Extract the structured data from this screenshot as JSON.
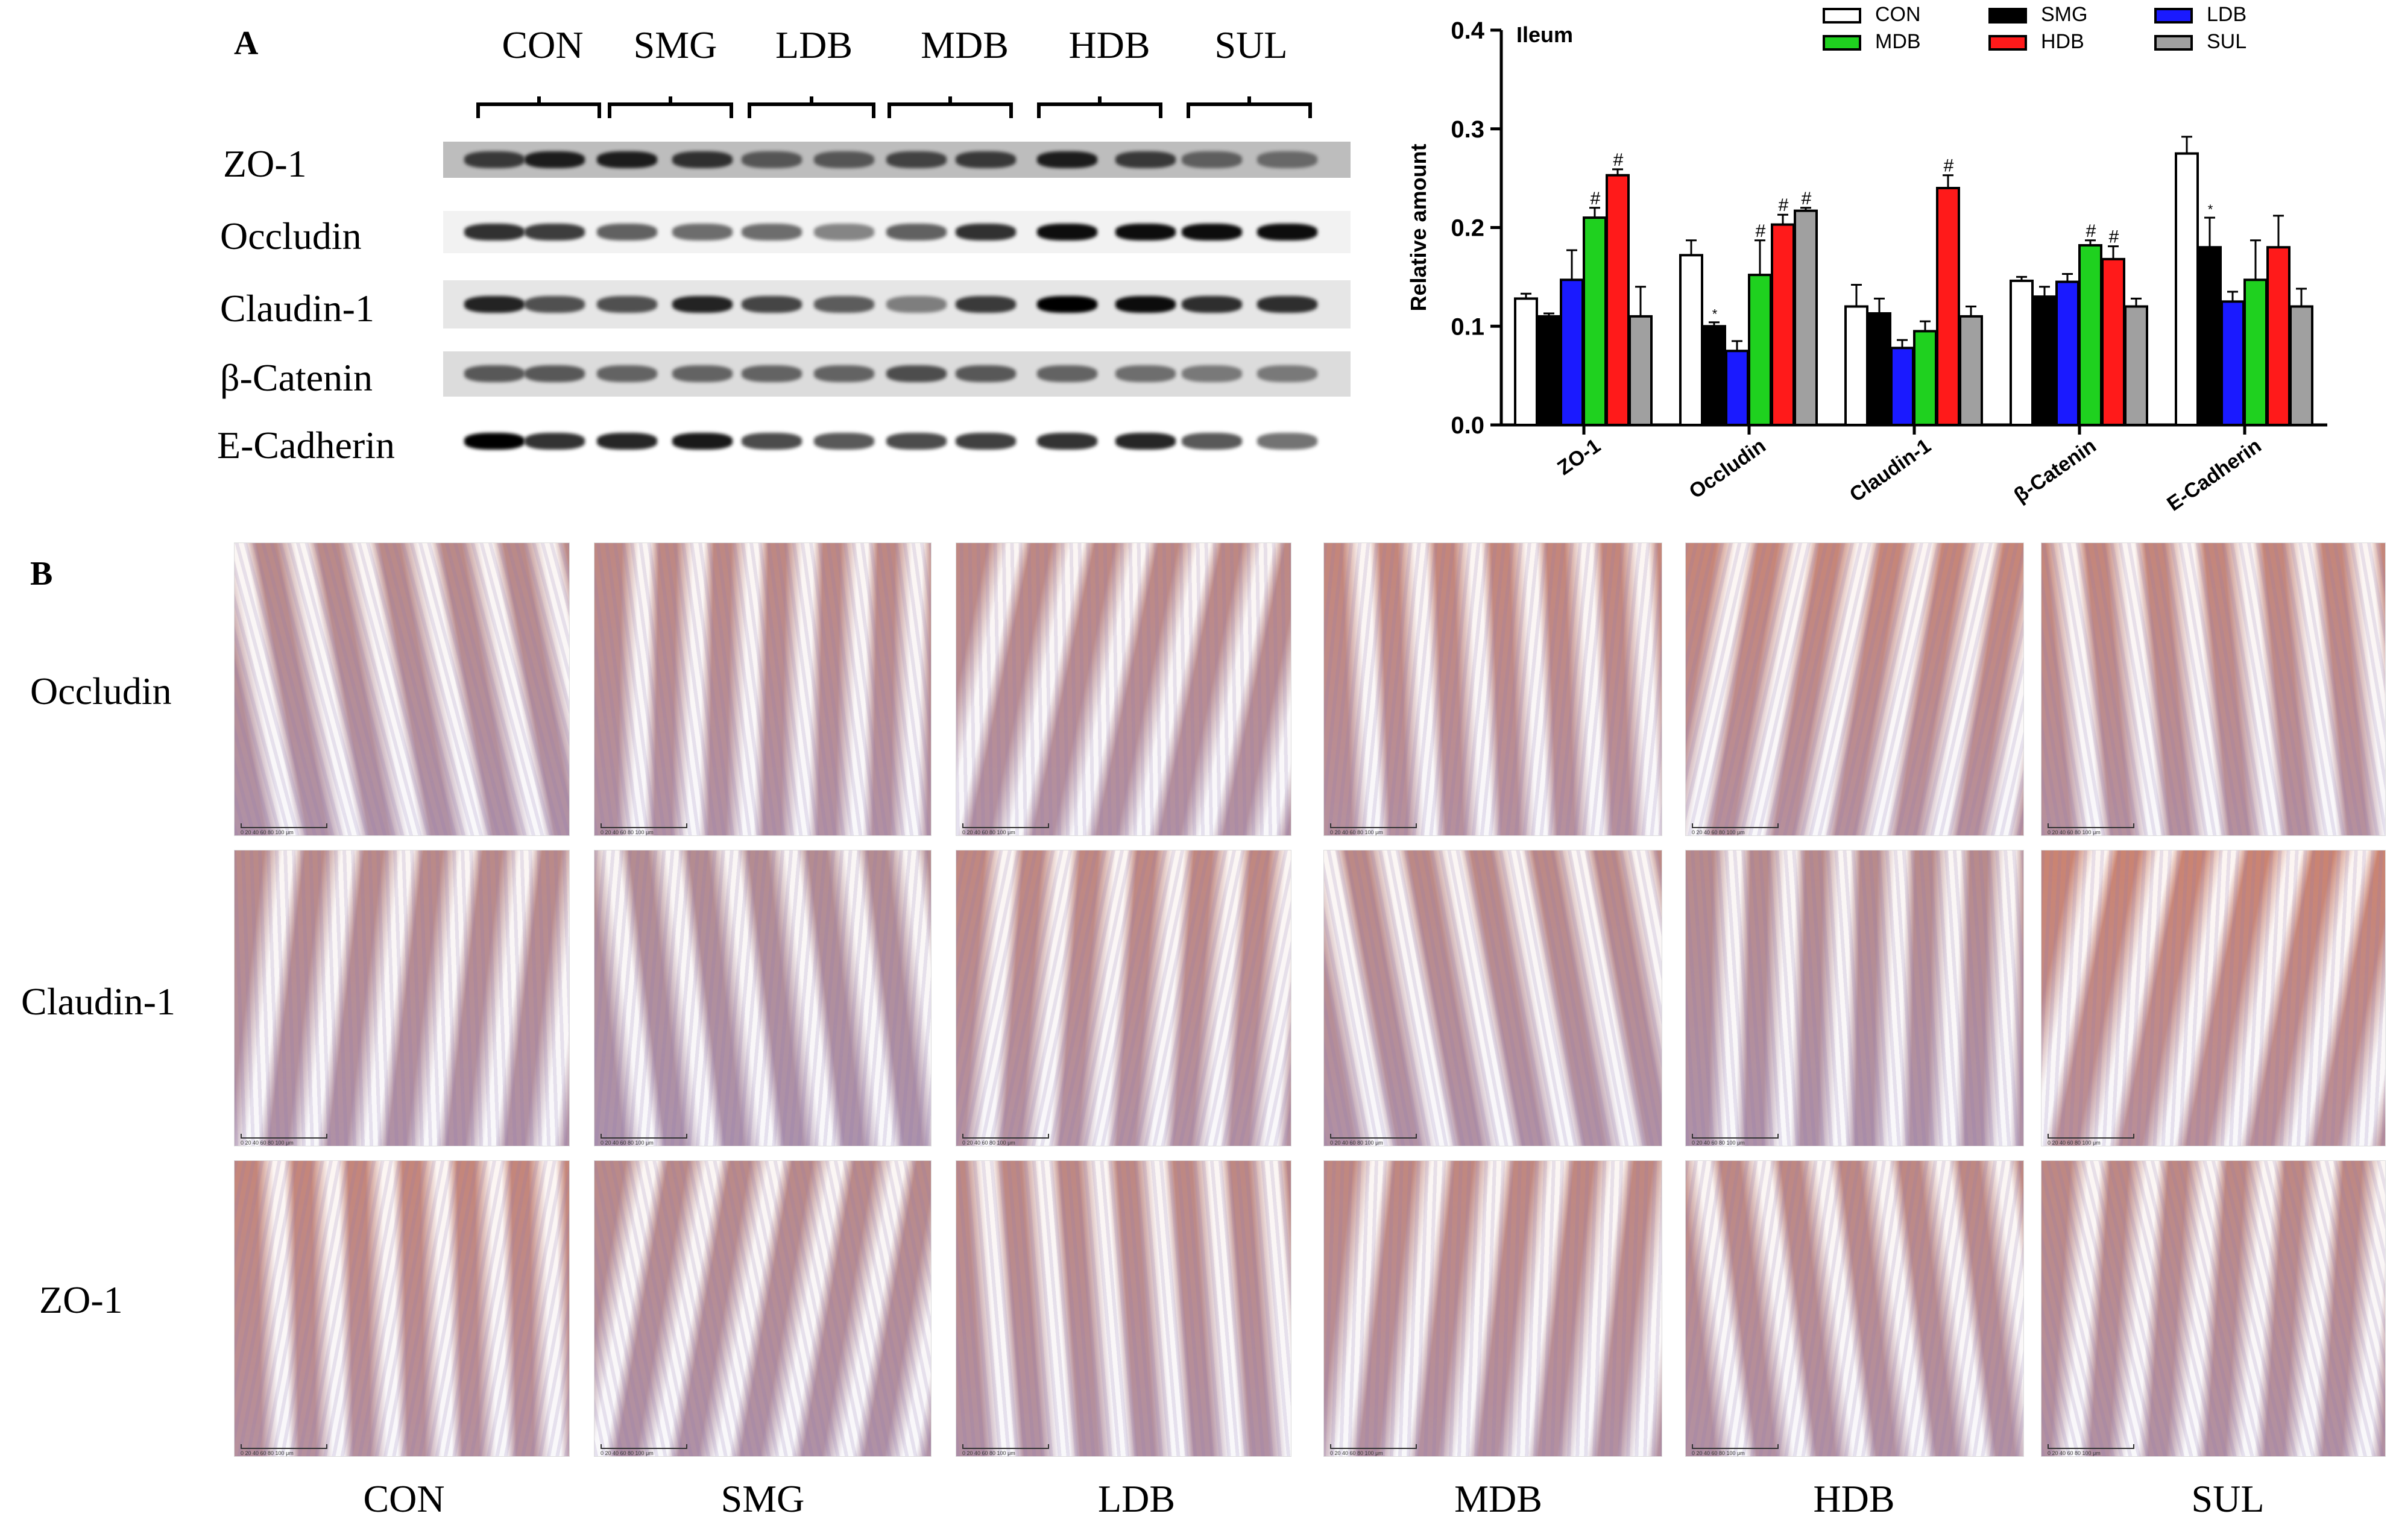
{
  "panels": {
    "a": "A",
    "b": "B"
  },
  "blot": {
    "lanes": [
      "CON",
      "SMG",
      "LDB",
      "MDB",
      "HDB",
      "SUL"
    ],
    "proteins": [
      "ZO-1",
      "Occludin",
      "Claudin-1",
      "β-Catenin",
      "E-Cadherin"
    ]
  },
  "ihc": {
    "rows": [
      "Occludin",
      "Claudin-1",
      "ZO-1"
    ],
    "cols": [
      "CON",
      "SMG",
      "LDB",
      "MDB",
      "HDB",
      "SUL"
    ],
    "scale_text": "0  20  40  60  80  100 μm"
  },
  "chart_data": {
    "type": "bar",
    "title": "Ileum",
    "ylabel": "Relative amount",
    "xlabel": "",
    "ylim": [
      0,
      0.4
    ],
    "yticks": [
      "0.0",
      "0.1",
      "0.2",
      "0.3",
      "0.4"
    ],
    "categories": [
      "ZO-1",
      "Occludin",
      "Claudin-1",
      "β-Catenin",
      "E-Cadherin"
    ],
    "legend_position": "top-right",
    "series": [
      {
        "name": "CON",
        "color": "#ffffff",
        "values": [
          0.128,
          0.172,
          0.12,
          0.146,
          0.275
        ],
        "errors": [
          0.005,
          0.015,
          0.022,
          0.004,
          0.017
        ],
        "marks": [
          "",
          "",
          "",
          "",
          ""
        ]
      },
      {
        "name": "SMG",
        "color": "#000000",
        "values": [
          0.11,
          0.1,
          0.113,
          0.13,
          0.18
        ],
        "errors": [
          0.003,
          0.004,
          0.015,
          0.01,
          0.03
        ],
        "marks": [
          "",
          "*",
          "",
          "",
          "*"
        ]
      },
      {
        "name": "LDB",
        "color": "#1a1aff",
        "values": [
          0.147,
          0.075,
          0.078,
          0.145,
          0.125
        ],
        "errors": [
          0.03,
          0.01,
          0.008,
          0.008,
          0.01
        ],
        "marks": [
          "",
          "",
          "",
          "",
          ""
        ]
      },
      {
        "name": "MDB",
        "color": "#1fd11f",
        "values": [
          0.21,
          0.152,
          0.095,
          0.182,
          0.147
        ],
        "errors": [
          0.01,
          0.035,
          0.01,
          0.005,
          0.04
        ],
        "marks": [
          "#",
          "#",
          "",
          "#",
          ""
        ]
      },
      {
        "name": "HDB",
        "color": "#ff1a1a",
        "values": [
          0.253,
          0.203,
          0.24,
          0.168,
          0.18
        ],
        "errors": [
          0.006,
          0.01,
          0.013,
          0.013,
          0.032
        ],
        "marks": [
          "#",
          "#",
          "#",
          "#",
          ""
        ]
      },
      {
        "name": "SUL",
        "color": "#a0a0a0",
        "values": [
          0.11,
          0.217,
          0.11,
          0.12,
          0.12
        ],
        "errors": [
          0.03,
          0.003,
          0.01,
          0.008,
          0.018
        ],
        "marks": [
          "",
          "#",
          "",
          "",
          ""
        ]
      }
    ]
  }
}
